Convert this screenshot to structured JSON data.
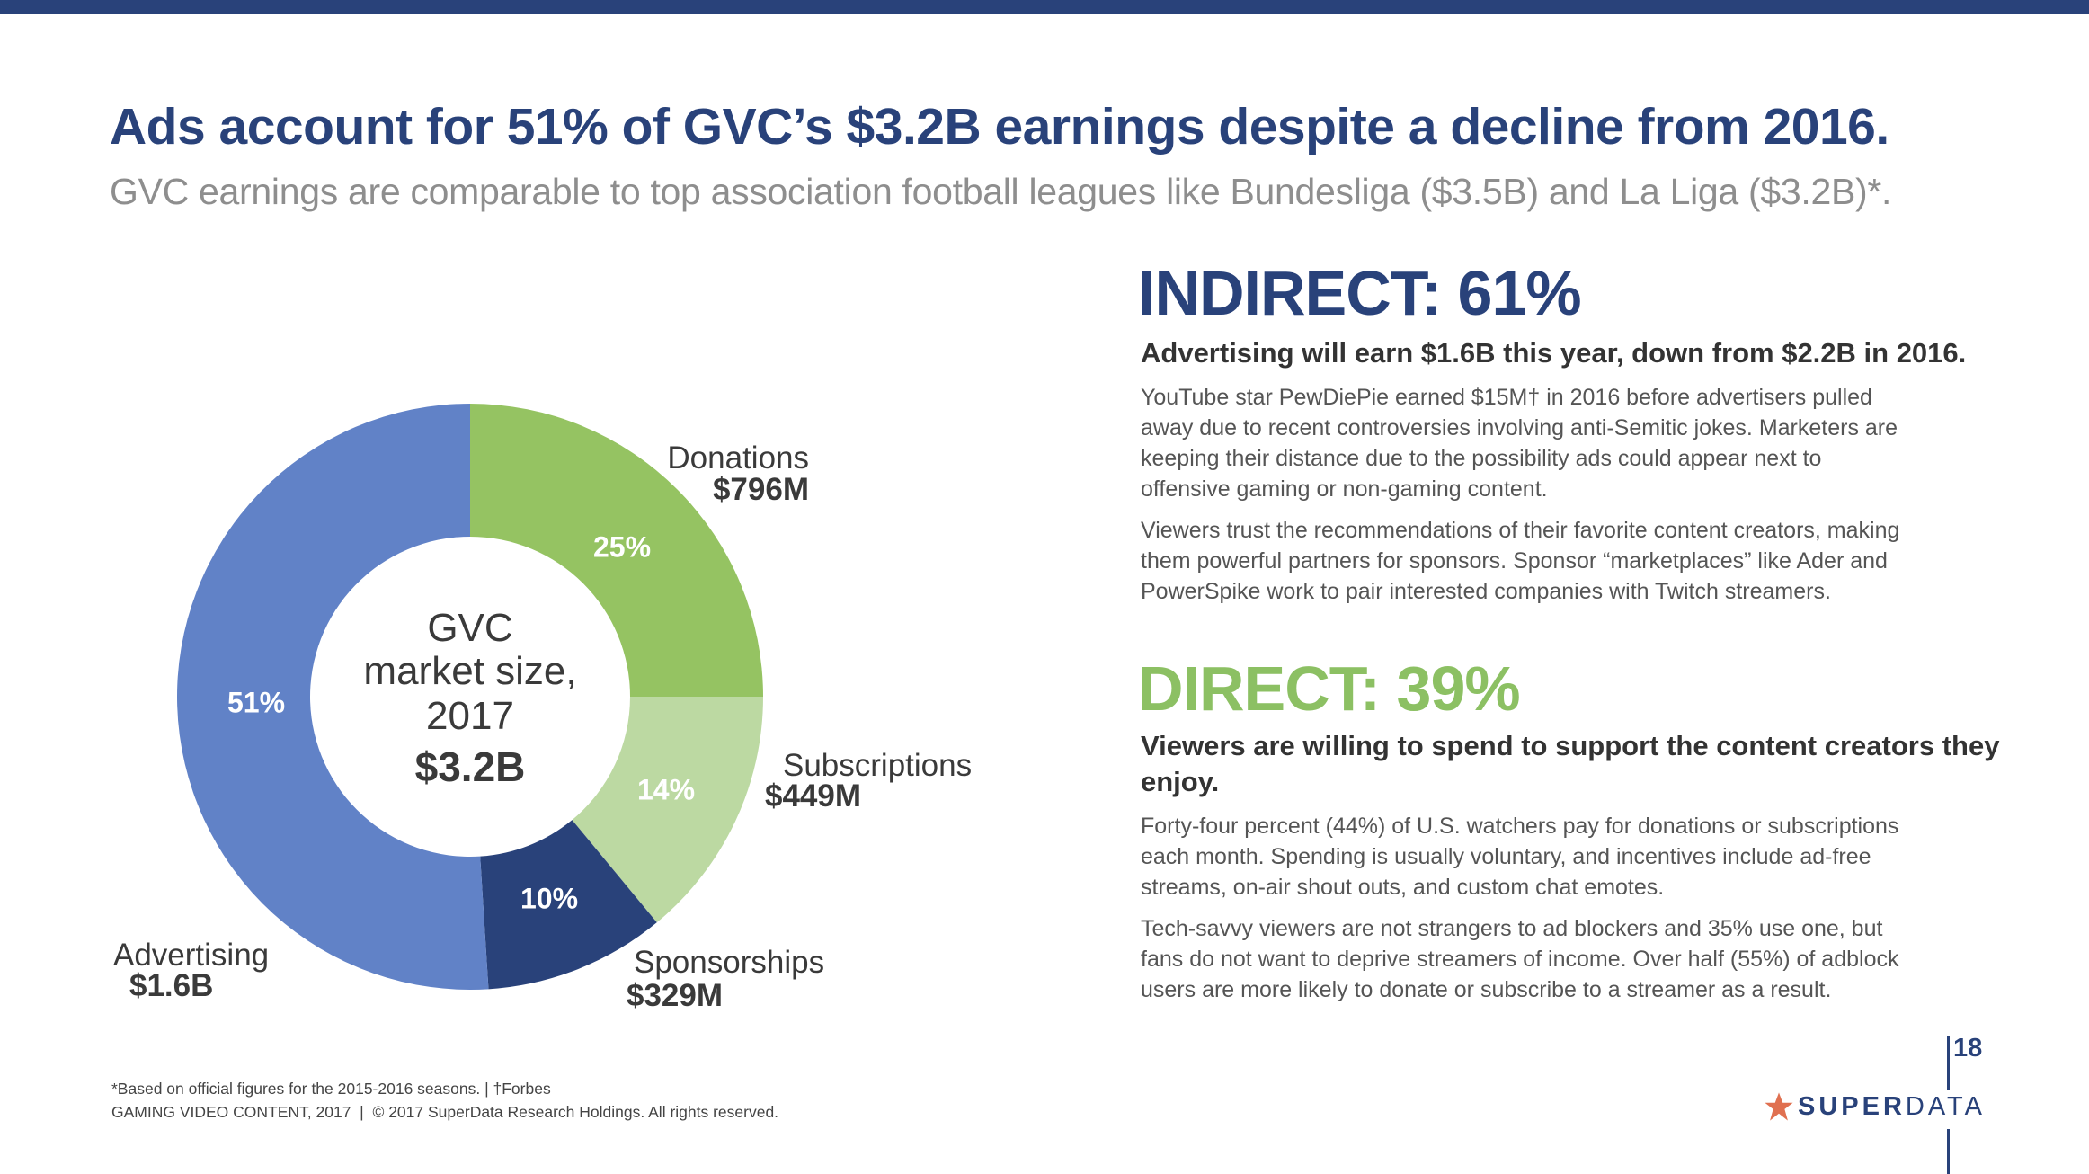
{
  "header": {
    "title": "Ads account for 51% of GVC’s $3.2B earnings despite a decline from 2016.",
    "subtitle": "GVC earnings are comparable to top association football leagues like Bundesliga ($3.5B) and La Liga ($3.2B)*."
  },
  "chart_data": {
    "type": "pie",
    "variant": "donut",
    "center_label": [
      "GVC",
      "market size,",
      "2017",
      "$3.2B"
    ],
    "total": "$3.2B",
    "slices": [
      {
        "name": "Donations",
        "value_label": "$796M",
        "percent": 25,
        "pct_label": "25%",
        "color": "#95c362"
      },
      {
        "name": "Subscriptions",
        "value_label": "$449M",
        "percent": 14,
        "pct_label": "14%",
        "color": "#bcd9a2"
      },
      {
        "name": "Sponsorships",
        "value_label": "$329M",
        "percent": 10,
        "pct_label": "10%",
        "color": "#29427a"
      },
      {
        "name": "Advertising",
        "value_label": "$1.6B",
        "percent": 51,
        "pct_label": "51%",
        "color": "#6182c7"
      }
    ]
  },
  "indirect": {
    "heading": "INDIRECT: 61%",
    "subheading": "Advertising will earn $1.6B this year, down from $2.2B in 2016.",
    "para1": [
      "YouTube star PewDiePie earned $15M† in 2016 before advertisers pulled",
      "away due to recent controversies involving anti-Semitic jokes. Marketers are",
      "keeping their distance due to the possibility ads could appear next to",
      "offensive gaming or non-gaming content."
    ],
    "para2": [
      "Viewers trust the recommendations of their favorite content creators, making",
      "them powerful partners for sponsors. Sponsor “marketplaces” like Ader and",
      "PowerSpike work to pair interested companies with Twitch streamers."
    ]
  },
  "direct": {
    "heading": "DIRECT: 39%",
    "subheading": [
      "Viewers are willing to spend to support the content creators they",
      "enjoy."
    ],
    "para1": [
      "Forty-four percent (44%) of U.S. watchers pay for donations or subscriptions",
      "each month. Spending is usually voluntary, and incentives include ad-free",
      "streams, on-air shout outs, and custom chat emotes."
    ],
    "para2": [
      "Tech-savvy viewers are not strangers to ad blockers and 35% use one, but",
      "fans do not want to deprive streamers of income. Over half (55%) of adblock",
      "users are more likely to donate or subscribe to a streamer as a result."
    ]
  },
  "footer": {
    "note": "*Based on official figures for the 2015-2016 seasons. | †Forbes",
    "copyright": "GAMING VIDEO CONTENT, 2017  |  © 2017 SuperData Research Holdings. All rights reserved.",
    "page_number": "18",
    "logo_super": "SUPER",
    "logo_data": "DATA"
  },
  "colors": {
    "brand_blue": "#29427a",
    "brand_green": "#8cc063",
    "star": "#e07050"
  }
}
